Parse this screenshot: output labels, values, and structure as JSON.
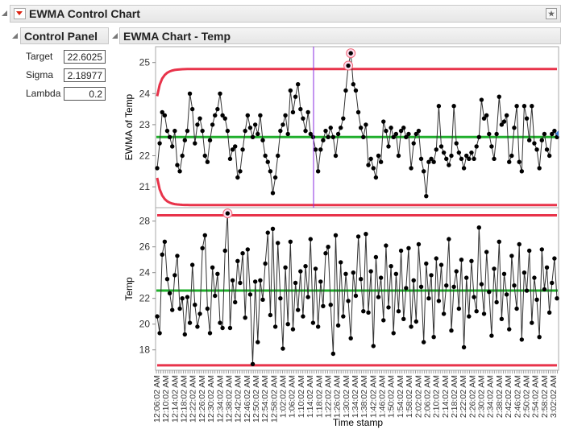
{
  "outline": {
    "title": "EWMA Control Chart",
    "menu_icon": "red-triangle-menu",
    "pin_icon": "pin-icon"
  },
  "control_panel": {
    "title": "Control Panel",
    "fields": [
      {
        "label": "Target",
        "value": "22.6025"
      },
      {
        "label": "Sigma",
        "value": "2.18977"
      },
      {
        "label": "Lambda",
        "value": "0.2"
      }
    ]
  },
  "chart_panel": {
    "title": "EWMA Chart - Temp"
  },
  "colors": {
    "limits": "#e8334a",
    "center": "#1fae2b",
    "points": "#000000",
    "cursor": "#8a2be2",
    "flag": "#f06a7a"
  },
  "chart_data": [
    {
      "type": "line",
      "ylabel": "EWMA of Temp",
      "ylim": [
        20.2,
        25.5
      ],
      "yticks": [
        "21",
        "22",
        "23",
        "24",
        "25"
      ],
      "target": 22.6025,
      "sigma": 2.18977,
      "lambda": 0.2,
      "values": [
        21.6,
        22.4,
        23.4,
        23.3,
        22.8,
        22.6,
        22.3,
        22.8,
        21.7,
        21.5,
        22.0,
        22.5,
        22.8,
        24.0,
        23.5,
        22.4,
        23.0,
        23.2,
        22.8,
        22.0,
        21.8,
        22.5,
        23.0,
        23.3,
        23.5,
        24.0,
        23.3,
        23.2,
        22.8,
        21.9,
        22.2,
        22.3,
        21.3,
        21.5,
        22.2,
        22.8,
        23.3,
        22.9,
        22.6,
        23.0,
        22.7,
        23.3,
        22.5,
        22.0,
        21.8,
        21.5,
        20.8,
        21.3,
        22.0,
        22.8,
        23.0,
        23.3,
        22.7,
        24.1,
        23.4,
        23.9,
        24.3,
        23.5,
        23.2,
        22.8,
        23.4,
        22.7,
        22.6,
        22.2,
        21.5,
        22.2,
        22.5,
        22.8,
        22.6,
        22.9,
        22.6,
        22.0,
        22.7,
        22.9,
        23.2,
        24.1,
        24.9,
        25.3,
        24.3,
        24.1,
        23.4,
        22.9,
        22.6,
        23.0,
        21.7,
        21.9,
        21.6,
        21.3,
        22.0,
        21.8,
        23.1,
        22.8,
        22.3,
        22.9,
        22.6,
        22.7,
        22.0,
        22.8,
        22.9,
        22.6,
        22.7,
        21.6,
        22.4,
        22.7,
        22.8,
        21.9,
        21.5,
        20.7,
        21.8,
        21.9,
        21.8,
        22.2,
        23.6,
        22.3,
        22.1,
        21.9,
        21.7,
        22.0,
        23.6,
        22.4,
        22.1,
        21.9,
        21.6,
        22.0,
        21.9,
        22.1,
        21.9,
        22.3,
        22.6,
        23.8,
        23.2,
        23.3,
        22.7,
        22.3,
        21.9,
        22.7,
        23.9,
        23.0,
        23.1,
        23.3,
        21.8,
        22.0,
        22.9,
        23.6,
        21.8,
        21.5,
        23.6,
        23.2,
        22.5,
        23.6,
        22.4,
        22.2,
        21.6,
        22.5,
        22.7,
        22.2,
        22.0,
        22.7,
        22.8,
        22.6
      ]
    },
    {
      "type": "line",
      "ylabel": "Temp",
      "ylim": [
        16.6,
        28.9
      ],
      "yticks": [
        "18",
        "20",
        "22",
        "24",
        "26",
        "28"
      ],
      "center": 22.6025,
      "ucl": 28.45,
      "lcl": 16.8,
      "values": [
        20.6,
        19.3,
        25.4,
        26.4,
        23.5,
        22.4,
        21.1,
        23.8,
        25.3,
        21.2,
        22.0,
        19.2,
        22.1,
        20.1,
        24.6,
        21.5,
        19.8,
        20.8,
        25.9,
        26.9,
        21.2,
        19.3,
        24.4,
        22.2,
        23.9,
        20.1,
        19.7,
        25.7,
        28.6,
        19.7,
        23.4,
        21.7,
        24.9,
        23.2,
        25.5,
        20.5,
        25.8,
        22.3,
        16.9,
        23.3,
        18.6,
        23.4,
        21.9,
        24.7,
        27.1,
        20.7,
        27.4,
        19.8,
        26.3,
        22.0,
        18.1,
        24.4,
        20.0,
        26.4,
        19.6,
        23.2,
        21.1,
        24.1,
        20.6,
        24.5,
        22.1,
        26.6,
        20.1,
        24.3,
        19.8,
        23.3,
        21.4,
        25.5,
        26.0,
        21.5,
        17.7,
        26.9,
        19.9,
        24.8,
        20.6,
        23.9,
        21.8,
        18.9,
        24.0,
        22.2,
        26.8,
        23.5,
        21.0,
        27.0,
        20.9,
        24.1,
        18.3,
        25.2,
        22.1,
        23.6,
        20.3,
        26.1,
        21.3,
        24.5,
        19.3,
        23.9,
        21.0,
        25.7,
        20.4,
        22.8,
        25.9,
        19.8,
        23.4,
        20.2,
        26.2,
        22.9,
        18.6,
        24.7,
        22.0,
        23.8,
        19.0,
        25.1,
        21.8,
        24.6,
        20.8,
        23.0,
        26.6,
        19.5,
        22.9,
        24.1,
        21.2,
        25.0,
        18.2,
        23.6,
        20.6,
        24.9,
        22.1,
        21.0,
        27.5,
        23.1,
        20.8,
        25.6,
        22.5,
        19.1,
        24.3,
        21.7,
        26.4,
        20.4,
        23.9,
        22.3,
        19.6,
        25.3,
        23.0,
        21.2,
        26.2,
        18.8,
        24.0,
        22.6,
        25.7,
        20.1,
        23.6,
        21.9,
        19.0,
        25.8,
        22.7,
        24.4,
        20.9,
        23.2,
        25.1,
        22.0
      ]
    }
  ],
  "x_axis": {
    "label": "Time stamp",
    "ticks": [
      "12:06:02 AM",
      "12:10:02 AM",
      "12:14:02 AM",
      "12:18:02 AM",
      "12:22:02 AM",
      "12:26:02 AM",
      "12:30:02 AM",
      "12:34:02 AM",
      "12:38:02 AM",
      "12:42:02 AM",
      "12:46:02 AM",
      "12:50:02 AM",
      "12:54:02 AM",
      "12:58:02 AM",
      "1:02:02 AM",
      "1:06:02 AM",
      "1:10:02 AM",
      "1:14:02 AM",
      "1:18:02 AM",
      "1:22:02 AM",
      "1:26:02 AM",
      "1:30:02 AM",
      "1:34:02 AM",
      "1:38:02 AM",
      "1:42:02 AM",
      "1:46:02 AM",
      "1:50:02 AM",
      "1:54:02 AM",
      "1:58:02 AM",
      "2:02:02 AM",
      "2:06:02 AM",
      "2:10:02 AM",
      "2:14:02 AM",
      "2:18:02 AM",
      "2:22:02 AM",
      "2:26:02 AM",
      "2:30:02 AM",
      "2:34:02 AM",
      "2:38:02 AM",
      "2:42:02 AM",
      "2:46:02 AM",
      "2:50:02 AM",
      "2:54:02 AM",
      "2:58:02 AM",
      "3:02:02 AM"
    ]
  }
}
